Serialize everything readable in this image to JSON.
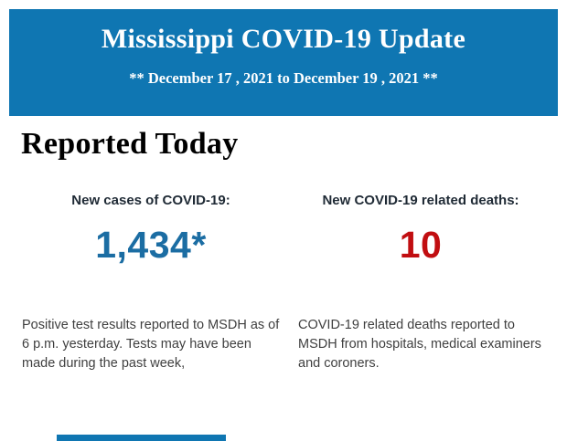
{
  "colors": {
    "banner_blue": "#0f76b2",
    "cases_blue": "#1b6da3",
    "deaths_red": "#c10e11"
  },
  "header": {
    "title": "Mississippi COVID-19 Update",
    "subtitle": "** December 17 , 2021 to December 19 , 2021 **"
  },
  "section": {
    "heading": "Reported Today"
  },
  "stats": {
    "cases": {
      "label": "New cases of COVID-19:",
      "value": "1,434*",
      "description": "Positive test results reported to MSDH as of 6 p.m. yesterday. Tests may have been made during the past week,"
    },
    "deaths": {
      "label": "New COVID-19 related deaths:",
      "value": "10",
      "description": "COVID-19 related deaths reported to MSDH from hospitals, medical examiners and coroners."
    }
  }
}
